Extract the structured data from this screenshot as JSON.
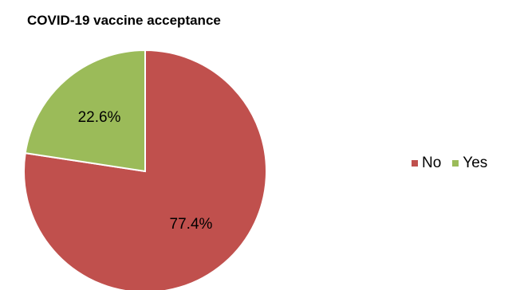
{
  "chart_data": {
    "type": "pie",
    "title": "COVID-19 vaccine acceptance",
    "categories": [
      "No",
      "Yes"
    ],
    "values": [
      77.4,
      22.6
    ],
    "labels": [
      "77.4%",
      "22.6%"
    ],
    "colors": [
      "#c0504d",
      "#9bbb59"
    ],
    "legend_position": "right"
  }
}
